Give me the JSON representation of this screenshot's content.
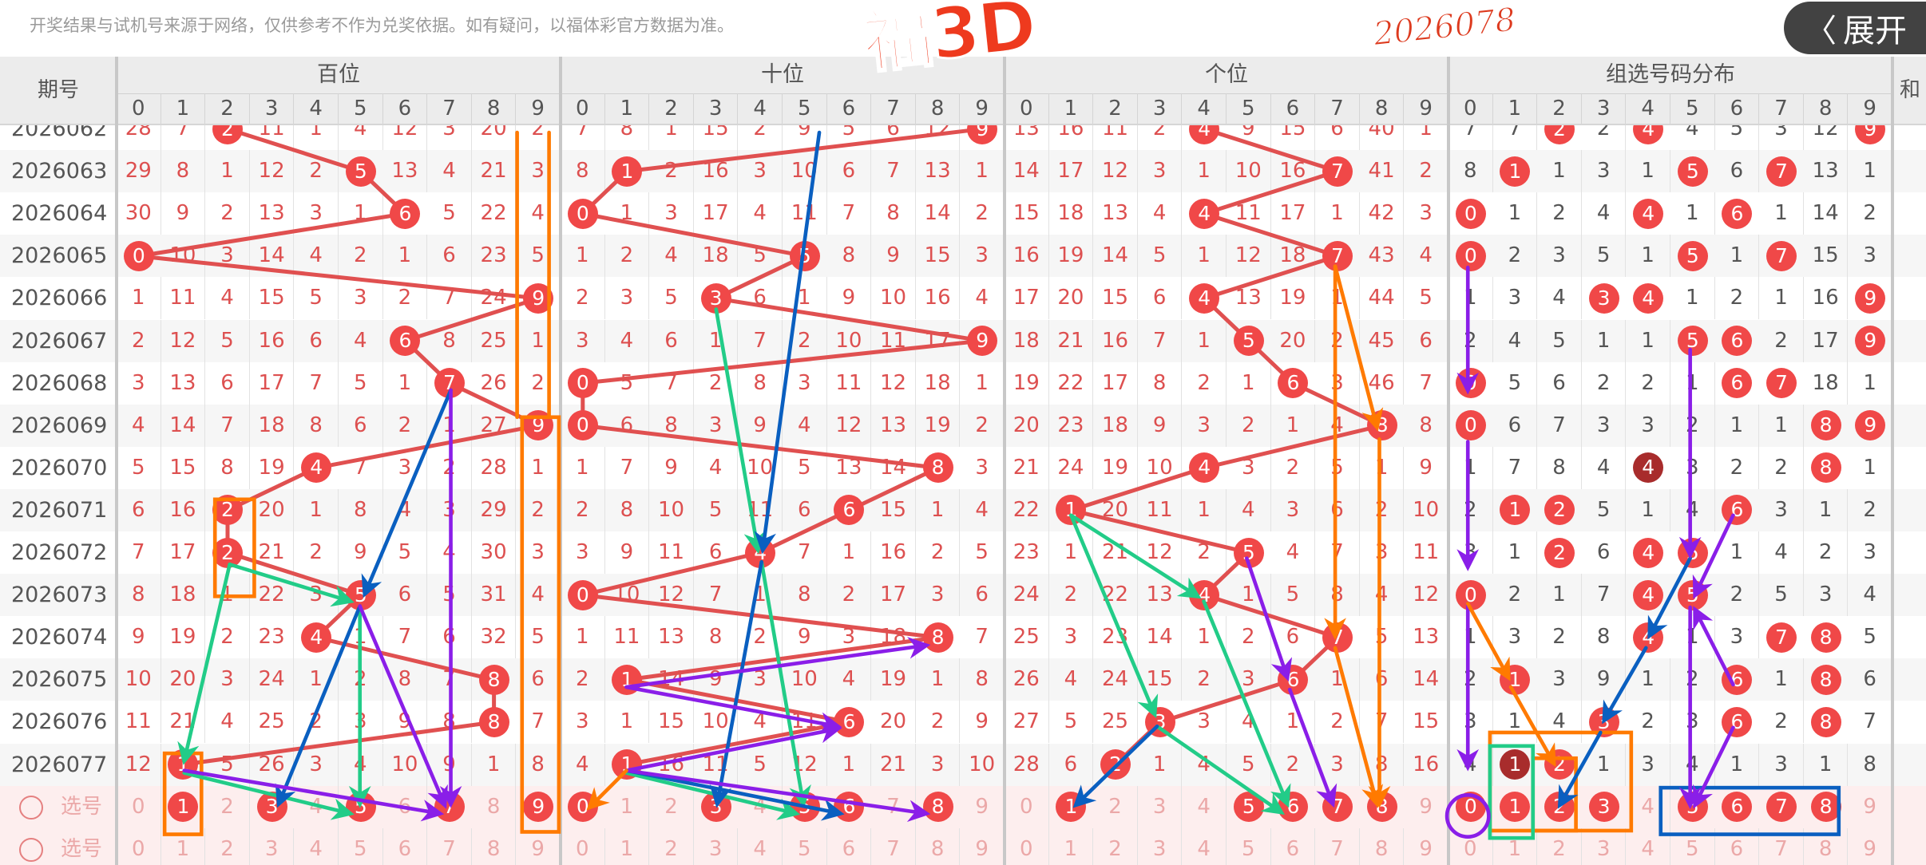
{
  "notice": "开奖结果与试机号来源于网络，仅供参考不作为兑奖依据。如有疑问，以福体彩官方数据为准。",
  "logo": "福3D",
  "stamp": "2026078",
  "expand_button": {
    "icon": "chevron-left-icon",
    "label": "展开"
  },
  "header": {
    "period": "期号",
    "groups": [
      "百位",
      "十位",
      "个位",
      "组选号码分布"
    ],
    "sum": "和",
    "digits": [
      "0",
      "1",
      "2",
      "3",
      "4",
      "5",
      "6",
      "7",
      "8",
      "9"
    ]
  },
  "colors": {
    "ball": "#f04848",
    "ball_double": "#a82c2c",
    "trend_line": "#e05050",
    "position_text": "#dd5050"
  },
  "rows": [
    {
      "period": "2026062",
      "draw": [
        2,
        9,
        4
      ],
      "bai": [
        28,
        7,
        2,
        11,
        1,
        4,
        12,
        3,
        20,
        2
      ],
      "shi": [
        7,
        8,
        1,
        15,
        2,
        9,
        5,
        6,
        12,
        9
      ],
      "ge": [
        13,
        16,
        11,
        2,
        4,
        9,
        15,
        6,
        40,
        1
      ],
      "zu": [
        7,
        7,
        2,
        2,
        4,
        4,
        5,
        3,
        12,
        9
      ],
      "zu_hits": [
        2,
        4,
        9
      ],
      "zu_double": []
    },
    {
      "period": "2026063",
      "draw": [
        5,
        1,
        7
      ],
      "bai": [
        29,
        8,
        1,
        12,
        2,
        5,
        13,
        4,
        21,
        3
      ],
      "shi": [
        8,
        1,
        2,
        16,
        3,
        10,
        6,
        7,
        13,
        1
      ],
      "ge": [
        14,
        17,
        12,
        3,
        1,
        10,
        16,
        7,
        41,
        2
      ],
      "zu": [
        8,
        1,
        1,
        3,
        1,
        5,
        6,
        7,
        13,
        1
      ],
      "zu_hits": [
        1,
        5,
        7
      ],
      "zu_double": []
    },
    {
      "period": "2026064",
      "draw": [
        6,
        0,
        4
      ],
      "bai": [
        30,
        9,
        2,
        13,
        3,
        1,
        6,
        5,
        22,
        4
      ],
      "shi": [
        0,
        1,
        3,
        17,
        4,
        11,
        7,
        8,
        14,
        2
      ],
      "ge": [
        15,
        18,
        13,
        4,
        4,
        11,
        17,
        1,
        42,
        3
      ],
      "zu": [
        0,
        1,
        2,
        4,
        4,
        1,
        6,
        1,
        14,
        2
      ],
      "zu_hits": [
        0,
        4,
        6
      ],
      "zu_double": []
    },
    {
      "period": "2026065",
      "draw": [
        0,
        5,
        7
      ],
      "bai": [
        0,
        10,
        3,
        14,
        4,
        2,
        1,
        6,
        23,
        5
      ],
      "shi": [
        1,
        2,
        4,
        18,
        5,
        5,
        8,
        9,
        15,
        3
      ],
      "ge": [
        16,
        19,
        14,
        5,
        1,
        12,
        18,
        7,
        43,
        4
      ],
      "zu": [
        0,
        2,
        3,
        5,
        1,
        5,
        1,
        7,
        15,
        3
      ],
      "zu_hits": [
        0,
        5,
        7
      ],
      "zu_double": []
    },
    {
      "period": "2026066",
      "draw": [
        9,
        3,
        4
      ],
      "bai": [
        1,
        11,
        4,
        15,
        5,
        3,
        2,
        7,
        24,
        9
      ],
      "shi": [
        2,
        3,
        5,
        3,
        6,
        1,
        9,
        10,
        16,
        4
      ],
      "ge": [
        17,
        20,
        15,
        6,
        4,
        13,
        19,
        1,
        44,
        5
      ],
      "zu": [
        1,
        3,
        4,
        3,
        4,
        1,
        2,
        1,
        16,
        9
      ],
      "zu_hits": [
        3,
        4,
        9
      ],
      "zu_double": []
    },
    {
      "period": "2026067",
      "draw": [
        6,
        9,
        5
      ],
      "bai": [
        2,
        12,
        5,
        16,
        6,
        4,
        6,
        8,
        25,
        1
      ],
      "shi": [
        3,
        4,
        6,
        1,
        7,
        2,
        10,
        11,
        17,
        9
      ],
      "ge": [
        18,
        21,
        16,
        7,
        1,
        5,
        20,
        2,
        45,
        6
      ],
      "zu": [
        2,
        4,
        5,
        1,
        1,
        5,
        6,
        2,
        17,
        9
      ],
      "zu_hits": [
        5,
        6,
        9
      ],
      "zu_double": []
    },
    {
      "period": "2026068",
      "draw": [
        7,
        0,
        6
      ],
      "bai": [
        3,
        13,
        6,
        17,
        7,
        5,
        1,
        7,
        26,
        2
      ],
      "shi": [
        0,
        5,
        7,
        2,
        8,
        3,
        11,
        12,
        18,
        1
      ],
      "ge": [
        19,
        22,
        17,
        8,
        2,
        1,
        6,
        3,
        46,
        7
      ],
      "zu": [
        0,
        5,
        6,
        2,
        2,
        1,
        6,
        7,
        18,
        1
      ],
      "zu_hits": [
        0,
        6,
        7
      ],
      "zu_double": []
    },
    {
      "period": "2026069",
      "draw": [
        9,
        0,
        8
      ],
      "bai": [
        4,
        14,
        7,
        18,
        8,
        6,
        2,
        1,
        27,
        9
      ],
      "shi": [
        0,
        6,
        8,
        3,
        9,
        4,
        12,
        13,
        19,
        2
      ],
      "ge": [
        20,
        23,
        18,
        9,
        3,
        2,
        1,
        4,
        8,
        8
      ],
      "zu": [
        0,
        6,
        7,
        3,
        3,
        2,
        1,
        1,
        8,
        9
      ],
      "zu_hits": [
        0,
        8,
        9
      ],
      "zu_double": []
    },
    {
      "period": "2026070",
      "draw": [
        4,
        8,
        4
      ],
      "bai": [
        5,
        15,
        8,
        19,
        4,
        7,
        3,
        2,
        28,
        1
      ],
      "shi": [
        1,
        7,
        9,
        4,
        10,
        5,
        13,
        14,
        8,
        3
      ],
      "ge": [
        21,
        24,
        19,
        10,
        4,
        3,
        2,
        5,
        1,
        9
      ],
      "zu": [
        1,
        7,
        8,
        4,
        4,
        3,
        2,
        2,
        8,
        1
      ],
      "zu_hits": [
        4,
        8
      ],
      "zu_double": [
        4
      ]
    },
    {
      "period": "2026071",
      "draw": [
        2,
        6,
        1
      ],
      "bai": [
        6,
        16,
        2,
        20,
        1,
        8,
        4,
        3,
        29,
        2
      ],
      "shi": [
        2,
        8,
        10,
        5,
        11,
        6,
        6,
        15,
        1,
        4
      ],
      "ge": [
        22,
        1,
        20,
        11,
        1,
        4,
        3,
        6,
        2,
        10
      ],
      "zu": [
        2,
        1,
        2,
        5,
        1,
        4,
        6,
        3,
        1,
        2
      ],
      "zu_hits": [
        1,
        2,
        6
      ],
      "zu_double": []
    },
    {
      "period": "2026072",
      "draw": [
        2,
        4,
        5
      ],
      "bai": [
        7,
        17,
        2,
        21,
        2,
        9,
        5,
        4,
        30,
        3
      ],
      "shi": [
        3,
        9,
        11,
        6,
        4,
        7,
        1,
        16,
        2,
        5
      ],
      "ge": [
        23,
        1,
        21,
        12,
        2,
        5,
        4,
        7,
        3,
        11
      ],
      "zu": [
        3,
        1,
        2,
        6,
        4,
        5,
        1,
        4,
        2,
        3
      ],
      "zu_hits": [
        2,
        4,
        5
      ],
      "zu_double": []
    },
    {
      "period": "2026073",
      "draw": [
        5,
        0,
        4
      ],
      "bai": [
        8,
        18,
        1,
        22,
        3,
        5,
        6,
        5,
        31,
        4
      ],
      "shi": [
        0,
        10,
        12,
        7,
        1,
        8,
        2,
        17,
        3,
        6
      ],
      "ge": [
        24,
        2,
        22,
        13,
        4,
        1,
        5,
        8,
        4,
        12
      ],
      "zu": [
        0,
        2,
        1,
        7,
        4,
        5,
        2,
        5,
        3,
        4
      ],
      "zu_hits": [
        0,
        4,
        5
      ],
      "zu_double": []
    },
    {
      "period": "2026074",
      "draw": [
        4,
        8,
        7
      ],
      "bai": [
        9,
        19,
        2,
        23,
        4,
        1,
        7,
        6,
        32,
        5
      ],
      "shi": [
        1,
        11,
        13,
        8,
        2,
        9,
        3,
        18,
        8,
        7
      ],
      "ge": [
        25,
        3,
        23,
        14,
        1,
        2,
        6,
        7,
        5,
        13
      ],
      "zu": [
        1,
        3,
        2,
        8,
        4,
        1,
        3,
        7,
        8,
        5
      ],
      "zu_hits": [
        4,
        7,
        8
      ],
      "zu_double": []
    },
    {
      "period": "2026075",
      "draw": [
        8,
        1,
        6
      ],
      "bai": [
        10,
        20,
        3,
        24,
        1,
        2,
        8,
        7,
        8,
        6
      ],
      "shi": [
        2,
        1,
        14,
        9,
        3,
        10,
        4,
        19,
        1,
        8
      ],
      "ge": [
        26,
        4,
        24,
        15,
        2,
        3,
        6,
        1,
        6,
        14
      ],
      "zu": [
        2,
        1,
        3,
        9,
        1,
        2,
        6,
        1,
        8,
        6
      ],
      "zu_hits": [
        1,
        6,
        8
      ],
      "zu_double": []
    },
    {
      "period": "2026076",
      "draw": [
        8,
        6,
        3
      ],
      "bai": [
        11,
        21,
        4,
        25,
        2,
        3,
        9,
        8,
        8,
        7
      ],
      "shi": [
        3,
        1,
        15,
        10,
        4,
        11,
        6,
        20,
        2,
        9
      ],
      "ge": [
        27,
        5,
        25,
        3,
        3,
        4,
        1,
        2,
        7,
        15
      ],
      "zu": [
        3,
        1,
        4,
        3,
        2,
        3,
        6,
        2,
        8,
        7
      ],
      "zu_hits": [
        3,
        6,
        8
      ],
      "zu_double": []
    },
    {
      "period": "2026077",
      "draw": [
        1,
        1,
        2
      ],
      "bai": [
        12,
        1,
        5,
        26,
        3,
        4,
        10,
        9,
        1,
        8
      ],
      "shi": [
        4,
        1,
        16,
        11,
        5,
        12,
        1,
        21,
        3,
        10
      ],
      "ge": [
        28,
        6,
        2,
        1,
        4,
        5,
        2,
        3,
        8,
        16
      ],
      "zu": [
        4,
        1,
        2,
        1,
        3,
        4,
        1,
        3,
        1,
        8
      ],
      "zu_hits": [
        1,
        2
      ],
      "zu_double": [
        1
      ]
    }
  ],
  "picks": [
    {
      "label": "选号",
      "bai": [
        1,
        3,
        5,
        7,
        9
      ],
      "shi": [
        0,
        3,
        5,
        6,
        8
      ],
      "ge": [
        1,
        5,
        6,
        7,
        8
      ],
      "zu": [
        0,
        1,
        2,
        3,
        5,
        6,
        7,
        8
      ]
    },
    {
      "label": "选号",
      "bai": [],
      "shi": [],
      "ge": [],
      "zu": []
    }
  ]
}
